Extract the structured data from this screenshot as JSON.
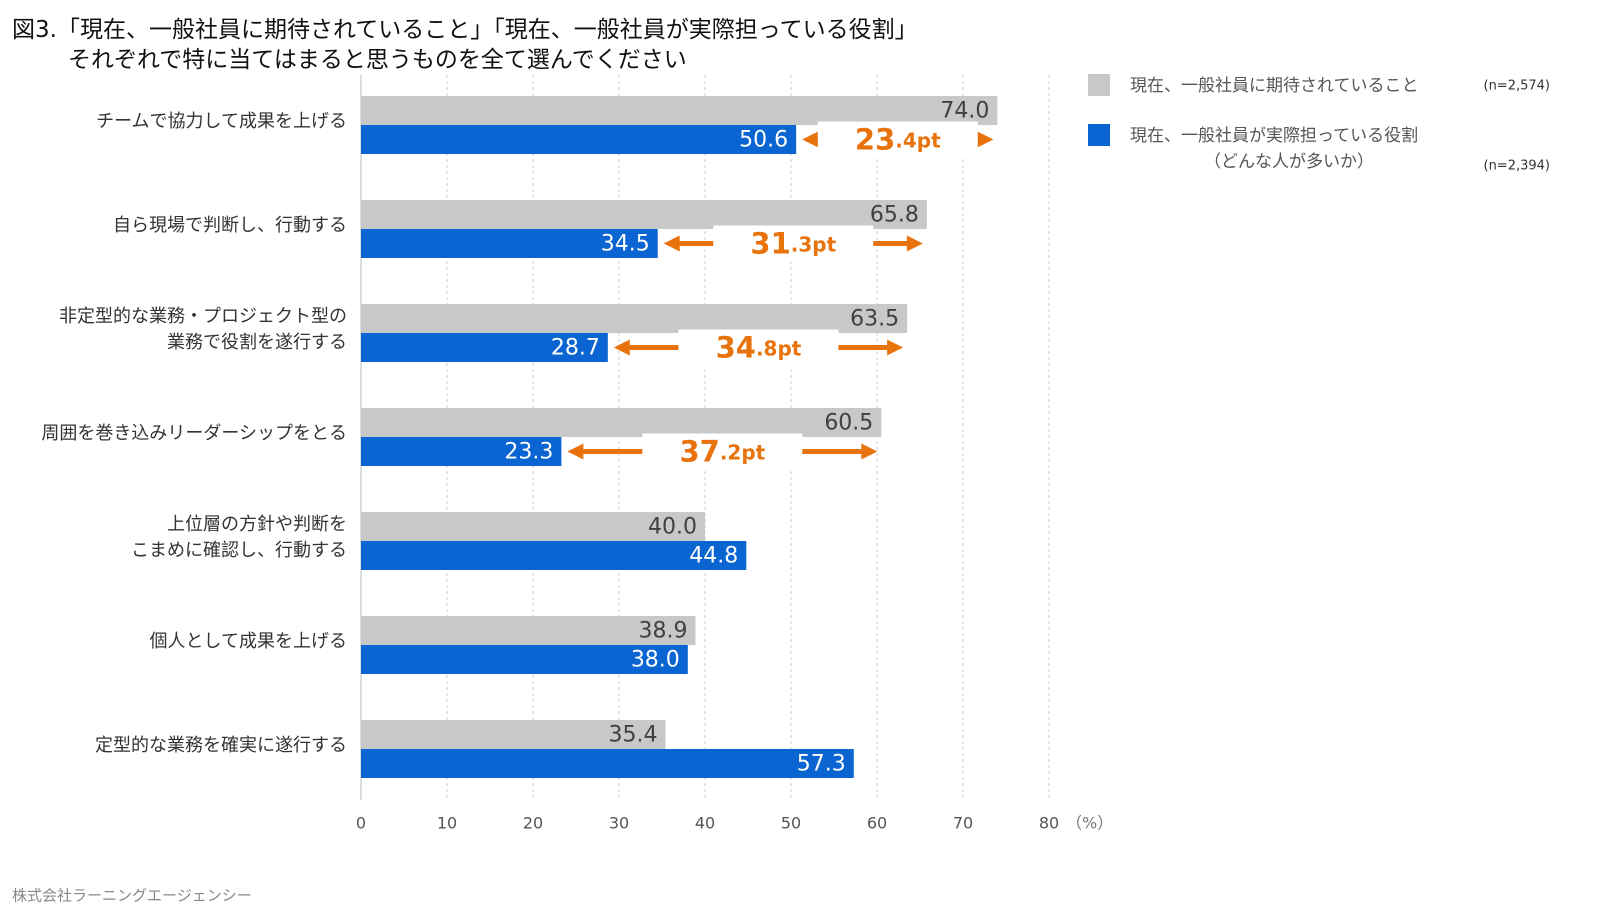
{
  "chart_data": {
    "type": "bar",
    "orientation": "horizontal",
    "title": "図3.「現在、一般社員に期待されていること」「現在、一般社員が実際担っている役割」\nそれぞれで特に当てはまると思うものを全て選んでください",
    "categories": [
      "チームで協力して成果を上げる",
      "自ら現場で判断し、行動する",
      "非定型的な業務・プロジェクト型の\n業務で役割を遂行する",
      "周囲を巻き込みリーダーシップをとる",
      "上位層の方針や判断を\nこまめに確認し、行動する",
      "個人として成果を上げる",
      "定型的な業務を確実に遂行する"
    ],
    "series": [
      {
        "name": "現在、一般社員に期待されていること",
        "n": "(n=2,574)",
        "color": "#c8c8c8",
        "label_color": "#404040",
        "values": [
          74.0,
          65.8,
          63.5,
          60.5,
          40.0,
          38.9,
          35.4
        ],
        "value_labels": [
          "74.0",
          "65.8",
          "63.5",
          "60.5",
          "40.0",
          "38.9",
          "35.4"
        ]
      },
      {
        "name": "現在、一般社員が実際担っている役割\n（どんな人が多いか）",
        "n": "(n=2,394)",
        "color": "#0a64d2",
        "label_color": "#ffffff",
        "values": [
          50.6,
          34.5,
          28.7,
          23.3,
          44.8,
          38.0,
          57.3
        ],
        "value_labels": [
          "50.6",
          "34.5",
          "28.7",
          "23.3",
          "44.8",
          "38.0",
          "57.3"
        ]
      }
    ],
    "differences": [
      "23.4pt",
      "31.3pt",
      "34.8pt",
      "37.2pt"
    ],
    "difference_color": "#e8730c",
    "xlim": [
      0,
      80
    ],
    "xticks": [
      0,
      10,
      20,
      30,
      40,
      50,
      60,
      70,
      80
    ],
    "x_unit": "（%）",
    "grid": true,
    "source": "株式会社ラーニングエージェンシー"
  }
}
